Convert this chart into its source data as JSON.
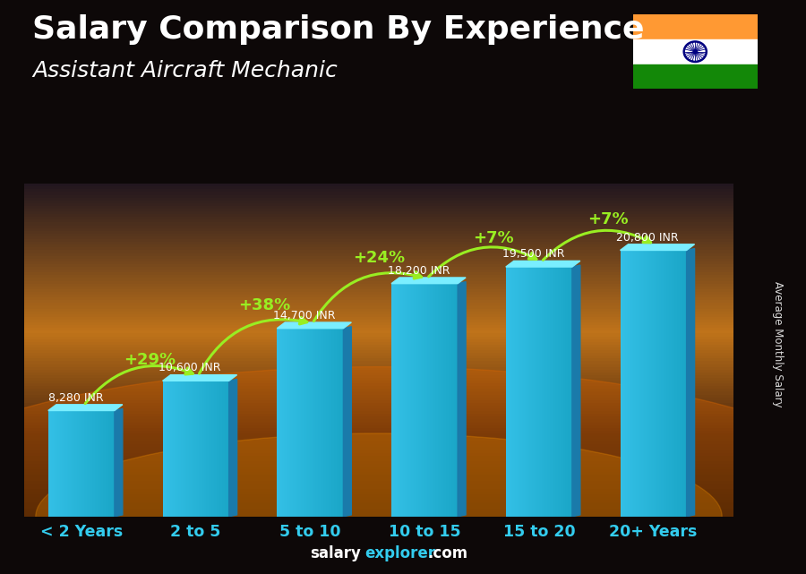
{
  "title": "Salary Comparison By Experience",
  "subtitle": "Assistant Aircraft Mechanic",
  "categories": [
    "< 2 Years",
    "2 to 5",
    "5 to 10",
    "10 to 15",
    "15 to 20",
    "20+ Years"
  ],
  "values": [
    8280,
    10600,
    14700,
    18200,
    19500,
    20800
  ],
  "value_labels": [
    "8,280 INR",
    "10,600 INR",
    "14,700 INR",
    "18,200 INR",
    "19,500 INR",
    "20,800 INR"
  ],
  "pct_changes": [
    "+29%",
    "+38%",
    "+24%",
    "+7%",
    "+7%"
  ],
  "pct_color": "#99EE22",
  "arrow_color": "#99EE22",
  "xlabel_color": "#33CCEE",
  "title_color": "#FFFFFF",
  "subtitle_color": "#FFFFFF",
  "label_color": "#FFFFFF",
  "footer_salary_color": "#FFFFFF",
  "footer_explorer_color": "#33CCEE",
  "ylabel_text": "Average Monthly Salary",
  "title_fontsize": 26,
  "subtitle_fontsize": 18,
  "bar_width": 0.58,
  "ylim_max": 26000,
  "bar_left_color": "#55DDFF",
  "bar_right_color": "#1199CC",
  "bar_top_color": "#88EEFF"
}
